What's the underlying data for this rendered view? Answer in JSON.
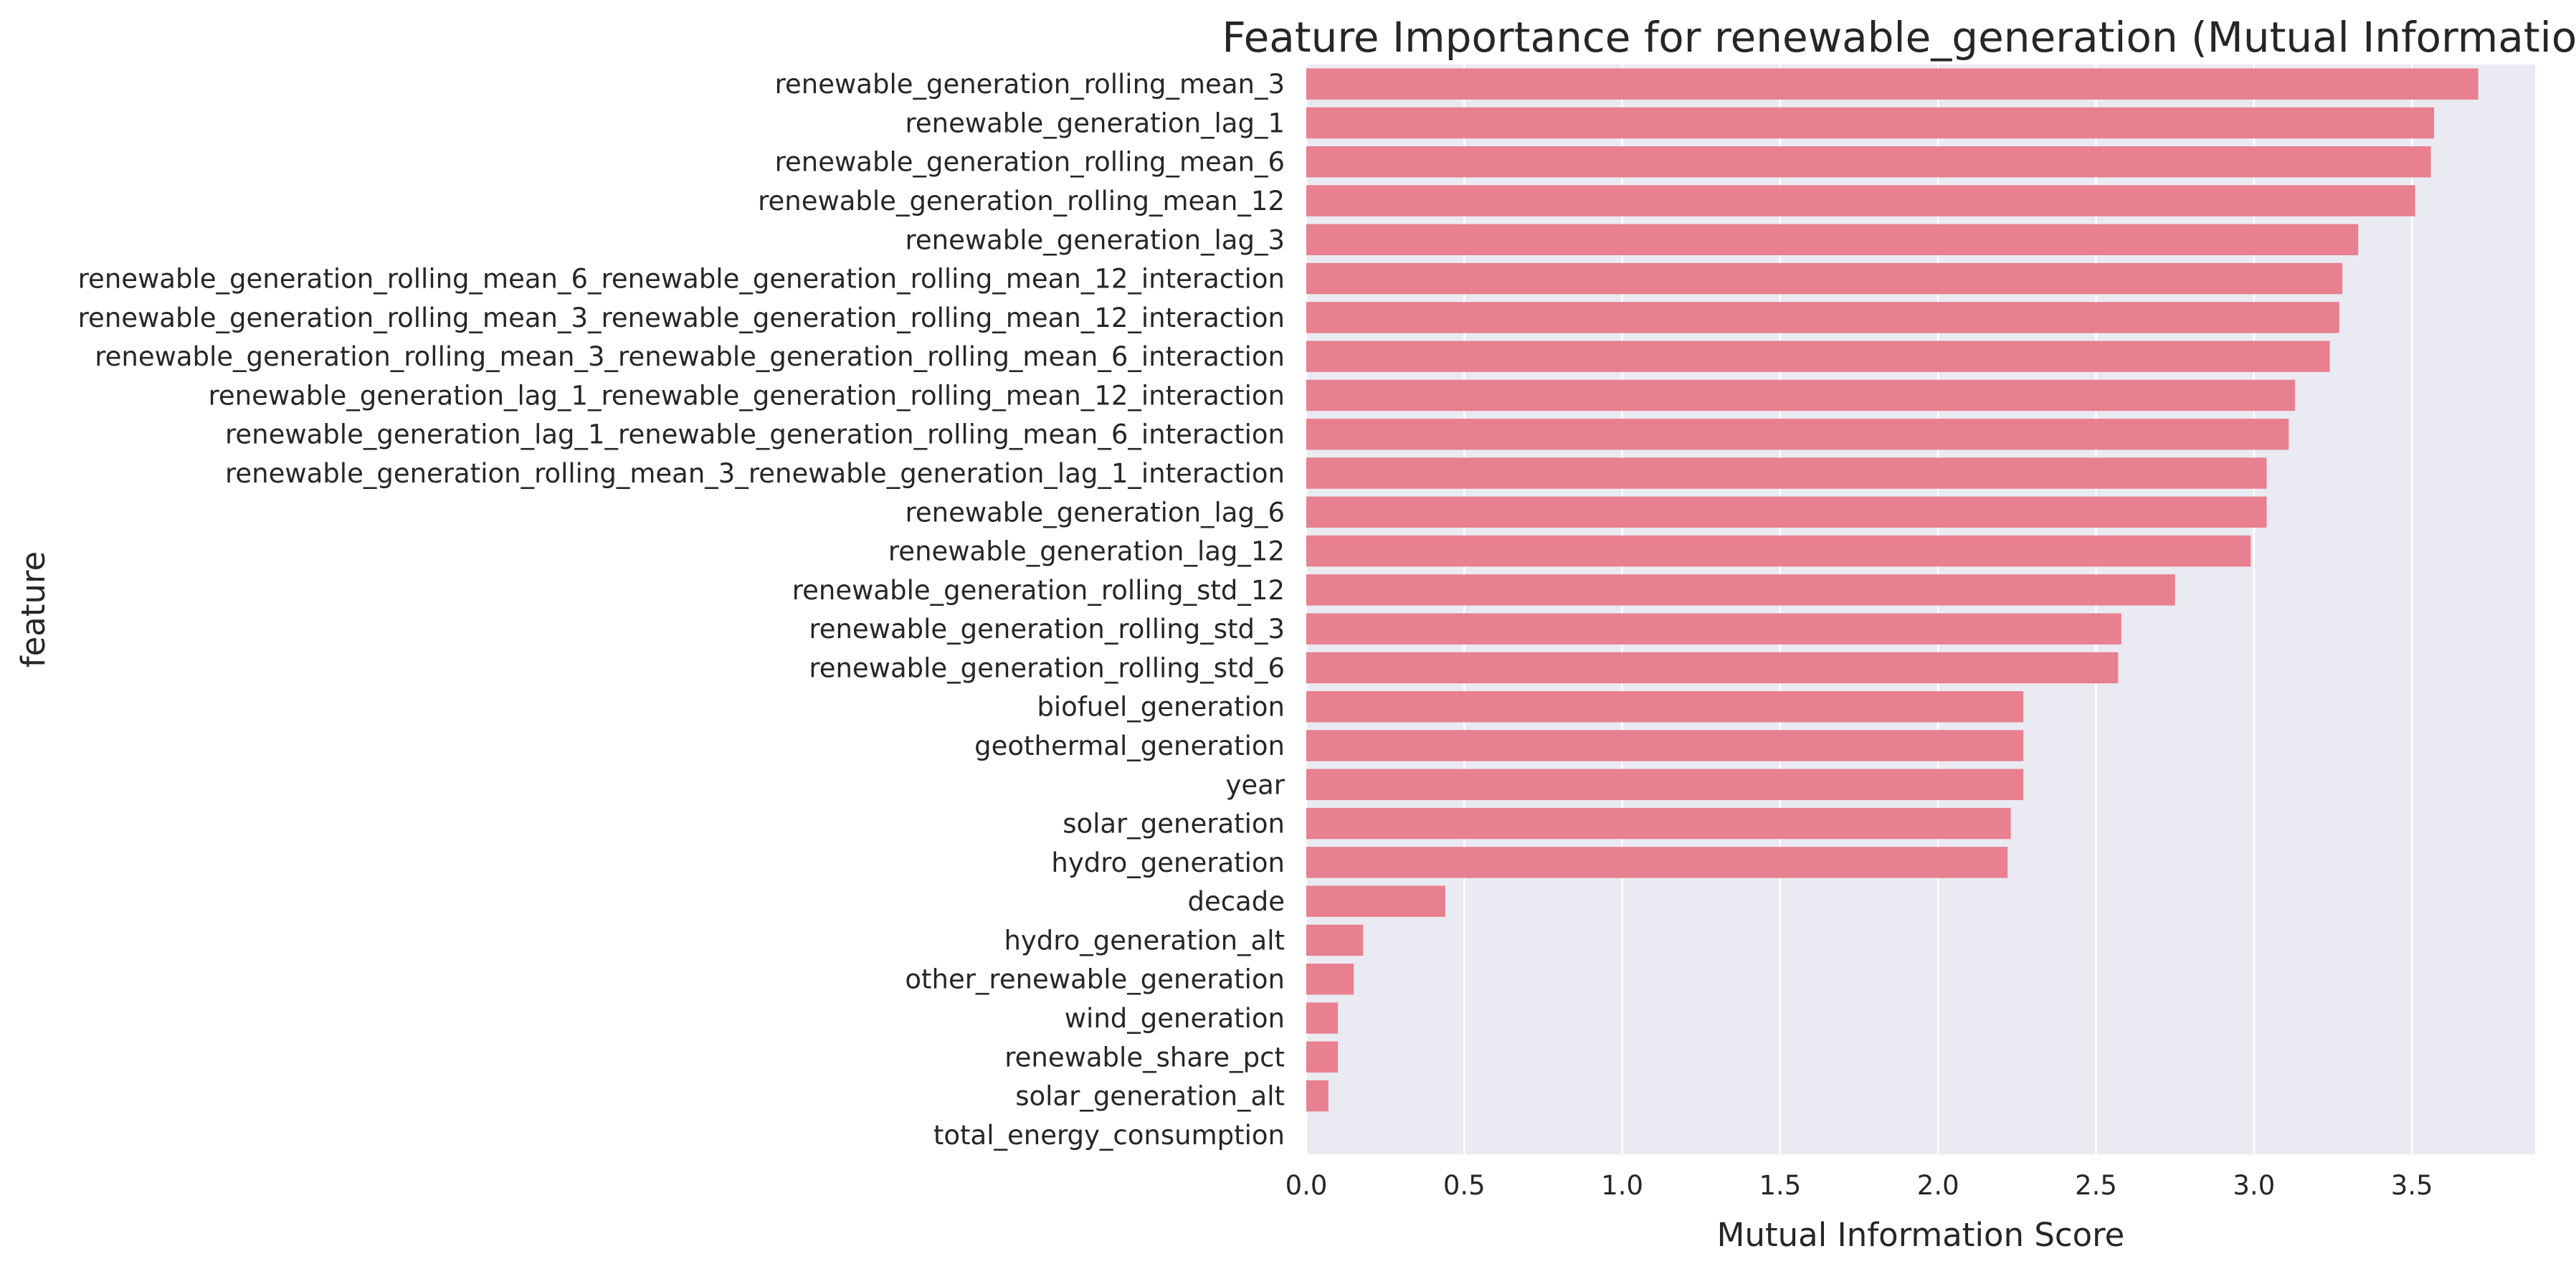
{
  "chart_data": {
    "type": "bar",
    "orientation": "horizontal",
    "title": "Feature Importance for renewable_generation (Mutual Information)",
    "xlabel": "Mutual Information Score",
    "ylabel": "feature",
    "xlim": [
      0,
      3.89
    ],
    "xticks": [
      0.0,
      0.5,
      1.0,
      1.5,
      2.0,
      2.5,
      3.0,
      3.5
    ],
    "xtick_labels": [
      "0.0",
      "0.5",
      "1.0",
      "1.5",
      "2.0",
      "2.5",
      "3.0",
      "3.5"
    ],
    "grid": true,
    "legend": "none",
    "colors": {
      "bar": "#e8808f",
      "plot_background": "#eaeaf2",
      "grid": "#ffffff"
    },
    "categories": [
      "renewable_generation_rolling_mean_3",
      "renewable_generation_lag_1",
      "renewable_generation_rolling_mean_6",
      "renewable_generation_rolling_mean_12",
      "renewable_generation_lag_3",
      "renewable_generation_rolling_mean_6_renewable_generation_rolling_mean_12_interaction",
      "renewable_generation_rolling_mean_3_renewable_generation_rolling_mean_12_interaction",
      "renewable_generation_rolling_mean_3_renewable_generation_rolling_mean_6_interaction",
      "renewable_generation_lag_1_renewable_generation_rolling_mean_12_interaction",
      "renewable_generation_lag_1_renewable_generation_rolling_mean_6_interaction",
      "renewable_generation_rolling_mean_3_renewable_generation_lag_1_interaction",
      "renewable_generation_lag_6",
      "renewable_generation_lag_12",
      "renewable_generation_rolling_std_12",
      "renewable_generation_rolling_std_3",
      "renewable_generation_rolling_std_6",
      "biofuel_generation",
      "geothermal_generation",
      "year",
      "solar_generation",
      "hydro_generation",
      "decade",
      "hydro_generation_alt",
      "other_renewable_generation",
      "wind_generation",
      "renewable_share_pct",
      "solar_generation_alt",
      "total_energy_consumption"
    ],
    "values": [
      3.71,
      3.57,
      3.56,
      3.51,
      3.33,
      3.28,
      3.27,
      3.24,
      3.13,
      3.11,
      3.04,
      3.04,
      2.99,
      2.75,
      2.58,
      2.57,
      2.27,
      2.27,
      2.27,
      2.23,
      2.22,
      0.44,
      0.18,
      0.15,
      0.1,
      0.1,
      0.07,
      0.0
    ]
  }
}
